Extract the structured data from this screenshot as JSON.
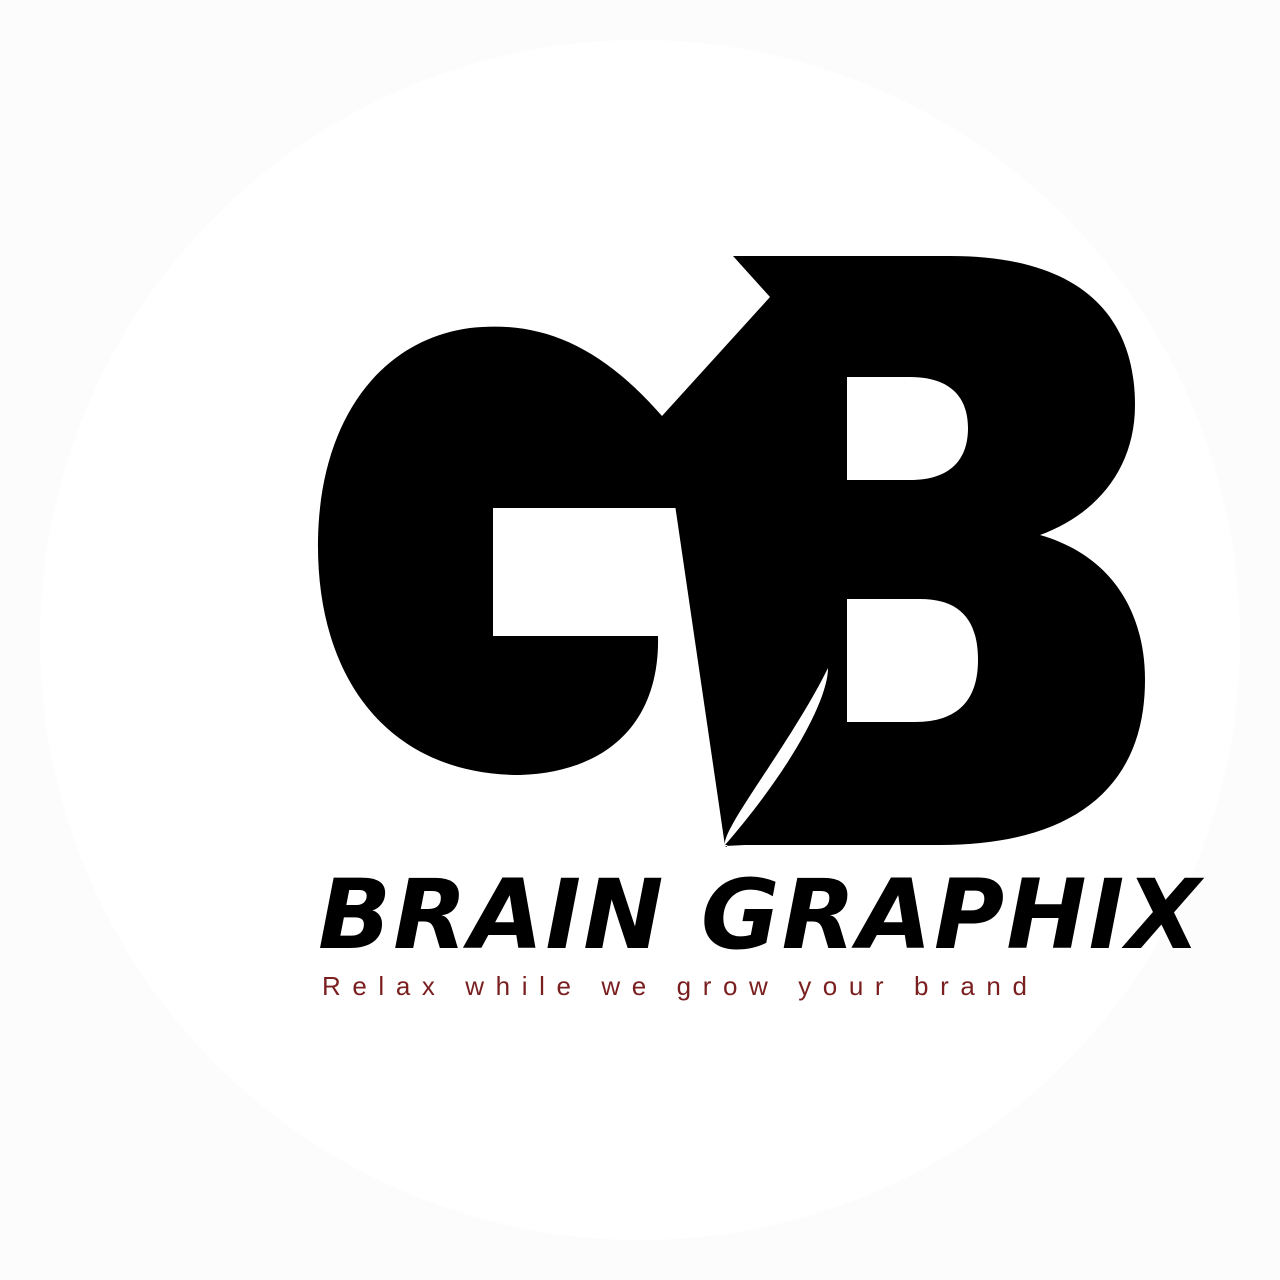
{
  "logo": {
    "monogram_letters": "GB",
    "brand_name": "BRAIN GRAPHIX",
    "tagline": "Relax while we grow your brand"
  },
  "colors": {
    "background": "#fdfcfc",
    "mark": "#000000",
    "brand_name": "#000000",
    "tagline": "#7a1f1f"
  }
}
